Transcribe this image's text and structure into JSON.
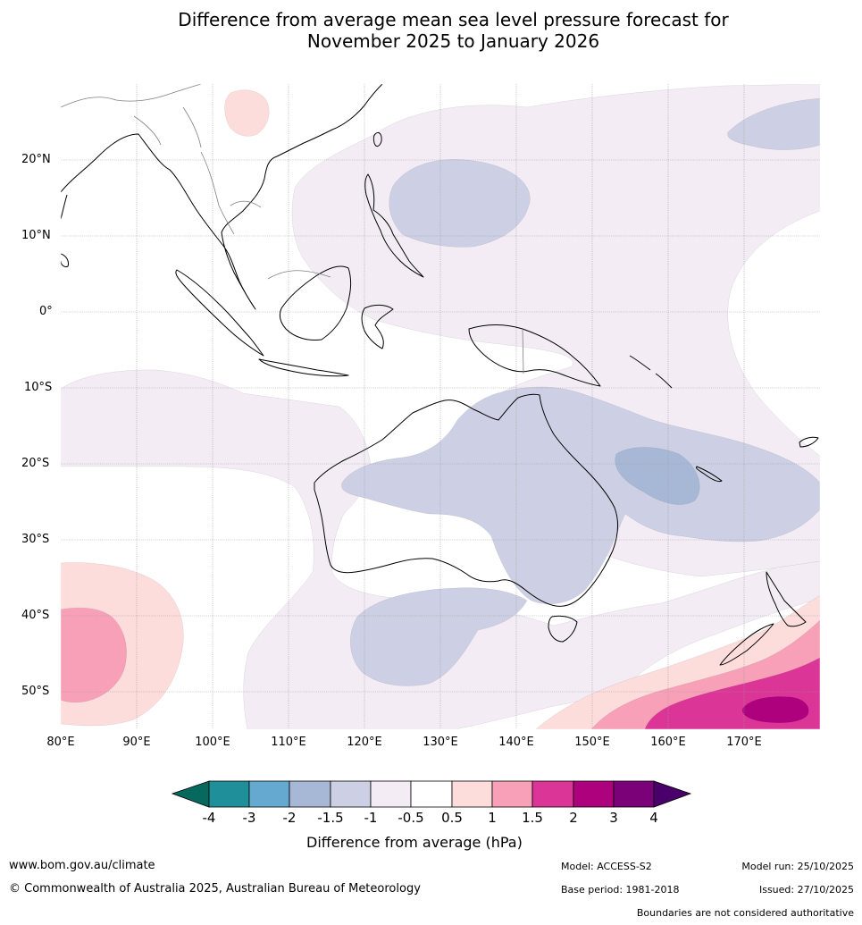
{
  "title_line1": "Difference from average mean sea level pressure forecast for",
  "title_line2": "November 2025 to January 2026",
  "latitude_labels": [
    "20°N",
    "10°N",
    "0°",
    "10°S",
    "20°S",
    "30°S",
    "40°S",
    "50°S"
  ],
  "longitude_labels": [
    "80°E",
    "90°E",
    "100°E",
    "110°E",
    "120°E",
    "130°E",
    "140°E",
    "150°E",
    "160°E",
    "170°E"
  ],
  "map_extent": {
    "lon_min": 80,
    "lon_max": 180,
    "lat_min": -55,
    "lat_max": 30
  },
  "legend": {
    "title": "Difference from average (hPa)",
    "tick_labels": [
      "-4",
      "-3",
      "-2",
      "-1.5",
      "-1",
      "-0.5",
      "0.5",
      "1",
      "1.5",
      "2",
      "3",
      "4"
    ],
    "colors": {
      "below_minus4": "#07695e",
      "minus4_to_minus3": "#1f8f99",
      "minus3_to_minus2": "#65a9d0",
      "minus2_to_minus1_5": "#a7b8d6",
      "minus1_5_to_minus1": "#cdd0e4",
      "minus1_to_minus0_5": "#f3ecf5",
      "neutral": "#ffffff",
      "p0_5_to_1": "#fddcdc",
      "p1_to_1_5": "#f7a0b8",
      "p1_5_to_2": "#dc3598",
      "p2_to_3": "#ae017e",
      "p3_to_4": "#7a0177",
      "above_4": "#49006a"
    }
  },
  "footer": {
    "url": "www.bom.gov.au/climate",
    "copyright": "© Commonwealth of Australia 2025, Australian Bureau of Meteorology",
    "model": "Model: ACCESS-S2",
    "base_period": "Base period: 1981-2018",
    "model_run": "Model run: 25/10/2025",
    "issued": "Issued: 27/10/2025",
    "disclaimer": "Boundaries are not considered authoritative"
  }
}
